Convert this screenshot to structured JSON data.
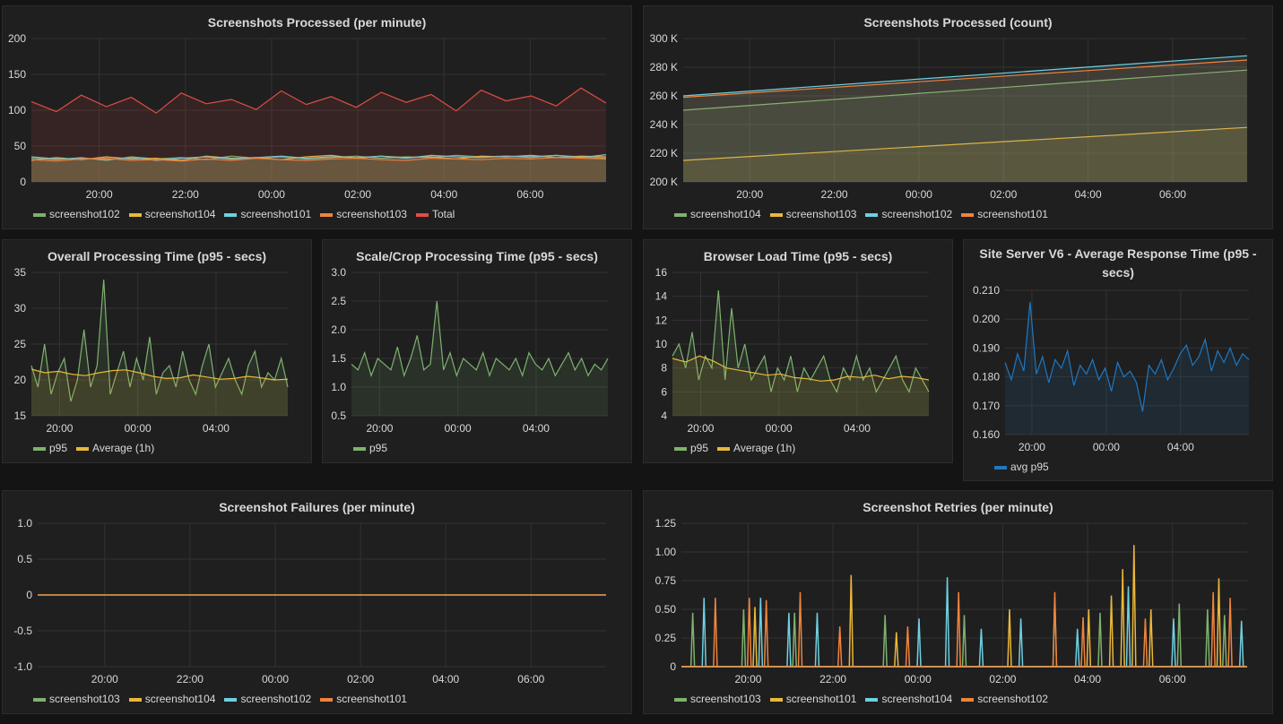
{
  "panels": [
    {
      "id": "processed-per-minute",
      "title": "Screenshots Processed (per minute)",
      "chart_data": {
        "type": "line",
        "title": "Screenshots Processed (per minute)",
        "y_ticks": [
          "200",
          "150",
          "100",
          "50",
          "0"
        ],
        "ylim": [
          0,
          200
        ],
        "x_ticks": [
          "20:00",
          "22:00",
          "00:00",
          "02:00",
          "04:00",
          "06:00"
        ],
        "grid": true,
        "legend_position": "bottom",
        "series": [
          {
            "name": "screenshot102",
            "color": "#7eb26d",
            "values": [
              33,
              31,
              34,
              30,
              35,
              32,
              34,
              31,
              36,
              33,
              35,
              32,
              34,
              36,
              33,
              35,
              34,
              37,
              35,
              36,
              34,
              37,
              35,
              33
            ]
          },
          {
            "name": "screenshot104",
            "color": "#eab839",
            "values": [
              30,
              34,
              31,
              35,
              32,
              33,
              30,
              36,
              33,
              34,
              31,
              35,
              37,
              33,
              36,
              34,
              35,
              32,
              36,
              35,
              37,
              34,
              36,
              35
            ]
          },
          {
            "name": "screenshot101",
            "color": "#6ed0e0",
            "values": [
              35,
              32,
              33,
              31,
              34,
              30,
              33,
              35,
              32,
              34,
              36,
              33,
              35,
              34,
              36,
              33,
              37,
              35,
              34,
              36,
              35,
              37,
              34,
              38
            ]
          },
          {
            "name": "screenshot103",
            "color": "#ef843c",
            "values": [
              31,
              29,
              32,
              33,
              30,
              31,
              29,
              32,
              30,
              33,
              31,
              30,
              32,
              33,
              31,
              30,
              33,
              32,
              31,
              33,
              32,
              34,
              33,
              32
            ]
          },
          {
            "name": "Total",
            "color": "#e24d42",
            "values": [
              112,
              98,
              121,
              105,
              118,
              96,
              124,
              109,
              115,
              101,
              127,
              108,
              119,
              104,
              125,
              111,
              122,
              99,
              128,
              113,
              120,
              106,
              131,
              110
            ]
          }
        ]
      },
      "legend": [
        "screenshot102",
        "screenshot104",
        "screenshot101",
        "screenshot103",
        "Total"
      ]
    },
    {
      "id": "processed-count",
      "title": "Screenshots Processed (count)",
      "chart_data": {
        "type": "area",
        "title": "Screenshots Processed (count)",
        "y_ticks": [
          "300 K",
          "280 K",
          "260 K",
          "240 K",
          "220 K",
          "200 K"
        ],
        "ylim": [
          200000,
          300000
        ],
        "x_ticks": [
          "20:00",
          "22:00",
          "00:00",
          "02:00",
          "04:00",
          "06:00"
        ],
        "grid": true,
        "legend_position": "bottom",
        "series": [
          {
            "name": "screenshot104",
            "color": "#7eb26d",
            "values": [
              250000,
              278000
            ]
          },
          {
            "name": "screenshot103",
            "color": "#eab839",
            "values": [
              215000,
              238000
            ]
          },
          {
            "name": "screenshot102",
            "color": "#6ed0e0",
            "values": [
              260000,
              288000
            ]
          },
          {
            "name": "screenshot101",
            "color": "#ef843c",
            "values": [
              259000,
              285000
            ]
          }
        ]
      },
      "legend": [
        "screenshot104",
        "screenshot103",
        "screenshot102",
        "screenshot101"
      ]
    },
    {
      "id": "overall-processing-time",
      "title": "Overall Processing Time (p95 - secs)",
      "chart_data": {
        "type": "line",
        "title": "Overall Processing Time (p95 - secs)",
        "y_ticks": [
          "35",
          "30",
          "25",
          "20",
          "15"
        ],
        "ylim": [
          15,
          35
        ],
        "x_ticks": [
          "20:00",
          "00:00",
          "04:00"
        ],
        "grid": true,
        "legend_position": "bottom",
        "series": [
          {
            "name": "p95",
            "color": "#7eb26d",
            "values": [
              22,
              19,
              25,
              18,
              21,
              23,
              17,
              20,
              27,
              19,
              22,
              34,
              18,
              21,
              24,
              19,
              23,
              20,
              26,
              18,
              21,
              22,
              19,
              24,
              20,
              18,
              22,
              25,
              19,
              21,
              23,
              20,
              18,
              22,
              24,
              19,
              21,
              20,
              23,
              19
            ]
          },
          {
            "name": "Average (1h)",
            "color": "#eab839",
            "values": [
              21.5,
              21,
              21.2,
              20.8,
              20.6,
              21,
              21.3,
              21.4,
              21,
              20.5,
              20.2,
              20.3,
              20.7,
              20.4,
              20.1,
              20.2,
              20.5,
              20.3,
              20,
              20.1
            ]
          }
        ]
      },
      "legend": [
        "p95",
        "Average (1h)"
      ]
    },
    {
      "id": "scale-crop-time",
      "title": "Scale/Crop Processing Time (p95 - secs)",
      "chart_data": {
        "type": "line",
        "title": "Scale/Crop Processing Time (p95 - secs)",
        "y_ticks": [
          "3.0",
          "2.5",
          "2.0",
          "1.5",
          "1.0",
          "0.5"
        ],
        "ylim": [
          0.5,
          3.0
        ],
        "x_ticks": [
          "20:00",
          "00:00",
          "04:00"
        ],
        "grid": true,
        "legend_position": "bottom",
        "series": [
          {
            "name": "p95",
            "color": "#7eb26d",
            "values": [
              1.4,
              1.3,
              1.6,
              1.2,
              1.5,
              1.4,
              1.3,
              1.7,
              1.2,
              1.5,
              1.9,
              1.3,
              1.4,
              2.5,
              1.3,
              1.6,
              1.2,
              1.5,
              1.4,
              1.3,
              1.6,
              1.2,
              1.5,
              1.4,
              1.3,
              1.5,
              1.2,
              1.6,
              1.4,
              1.3,
              1.5,
              1.2,
              1.4,
              1.6,
              1.3,
              1.5,
              1.2,
              1.4,
              1.3,
              1.5
            ]
          }
        ]
      },
      "legend": [
        "p95"
      ]
    },
    {
      "id": "browser-load-time",
      "title": "Browser Load Time (p95 - secs)",
      "chart_data": {
        "type": "line",
        "title": "Browser Load Time (p95 - secs)",
        "y_ticks": [
          "16",
          "14",
          "12",
          "10",
          "8",
          "6",
          "4"
        ],
        "ylim": [
          4,
          16
        ],
        "x_ticks": [
          "20:00",
          "00:00",
          "04:00"
        ],
        "grid": true,
        "legend_position": "bottom",
        "series": [
          {
            "name": "p95",
            "color": "#7eb26d",
            "values": [
              9,
              10,
              8,
              11,
              7,
              9,
              8,
              14.5,
              7,
              13,
              8,
              10,
              7,
              8,
              9,
              6,
              8,
              7,
              9,
              6,
              8,
              7,
              8,
              9,
              7,
              6,
              8,
              7,
              9,
              7,
              8,
              6,
              7,
              8,
              9,
              7,
              6,
              8,
              7,
              6
            ]
          },
          {
            "name": "Average (1h)",
            "color": "#eab839",
            "values": [
              8.8,
              8.5,
              9,
              8.6,
              8,
              7.8,
              7.6,
              7.4,
              7.5,
              7.2,
              7.1,
              6.9,
              7,
              7.3,
              7.2,
              7.4,
              7.1,
              7.3,
              7.2,
              7
            ]
          }
        ]
      },
      "legend": [
        "p95",
        "Average (1h)"
      ]
    },
    {
      "id": "site-server-response-time",
      "title": "Site Server V6 - Average Response Time (p95 - secs)",
      "chart_data": {
        "type": "line",
        "title": "Site Server V6 - Average Response Time (p95 - secs)",
        "y_ticks": [
          "0.210",
          "0.200",
          "0.190",
          "0.180",
          "0.170",
          "0.160"
        ],
        "ylim": [
          0.16,
          0.21
        ],
        "x_ticks": [
          "20:00",
          "00:00",
          "04:00"
        ],
        "grid": true,
        "legend_position": "bottom",
        "series": [
          {
            "name": "avg p95",
            "color": "#1f78c1",
            "values": [
              0.185,
              0.179,
              0.188,
              0.182,
              0.206,
              0.181,
              0.187,
              0.178,
              0.186,
              0.183,
              0.189,
              0.177,
              0.184,
              0.181,
              0.186,
              0.179,
              0.183,
              0.175,
              0.185,
              0.18,
              0.182,
              0.178,
              0.168,
              0.184,
              0.181,
              0.186,
              0.179,
              0.183,
              0.188,
              0.191,
              0.184,
              0.187,
              0.193,
              0.182,
              0.189,
              0.185,
              0.19,
              0.184,
              0.188,
              0.186
            ]
          }
        ]
      },
      "legend": [
        "avg p95"
      ]
    },
    {
      "id": "failures-per-minute",
      "title": "Screenshot Failures (per minute)",
      "chart_data": {
        "type": "line",
        "title": "Screenshot Failures (per minute)",
        "y_ticks": [
          "1.0",
          "0.5",
          "0",
          "-0.5",
          "-1.0"
        ],
        "ylim": [
          -1.0,
          1.0
        ],
        "x_ticks": [
          "20:00",
          "22:00",
          "00:00",
          "02:00",
          "04:00",
          "06:00"
        ],
        "grid": true,
        "legend_position": "bottom",
        "series": [
          {
            "name": "screenshot103",
            "color": "#7eb26d",
            "values": [
              0,
              0
            ]
          },
          {
            "name": "screenshot104",
            "color": "#eab839",
            "values": [
              0,
              0
            ]
          },
          {
            "name": "screenshot102",
            "color": "#6ed0e0",
            "values": [
              0,
              0
            ]
          },
          {
            "name": "screenshot101",
            "color": "#ef843c",
            "values": [
              0,
              0
            ]
          }
        ]
      },
      "legend": [
        "screenshot103",
        "screenshot104",
        "screenshot102",
        "screenshot101"
      ]
    },
    {
      "id": "retries-per-minute",
      "title": "Screenshot Retries (per minute)",
      "chart_data": {
        "type": "line",
        "title": "Screenshot Retries (per minute)",
        "y_ticks": [
          "1.25",
          "1.00",
          "0.75",
          "0.50",
          "0.25",
          "0"
        ],
        "ylim": [
          0,
          1.25
        ],
        "x_ticks": [
          "20:00",
          "22:00",
          "00:00",
          "02:00",
          "04:00",
          "06:00"
        ],
        "grid": true,
        "legend_position": "bottom",
        "series": [
          {
            "name": "screenshot103",
            "color": "#7eb26d",
            "spikes": [
              [
                0.02,
                0.47
              ],
              [
                0.11,
                0.5
              ],
              [
                0.2,
                0.47
              ],
              [
                0.36,
                0.45
              ],
              [
                0.5,
                0.45
              ],
              [
                0.66,
                0.6
              ],
              [
                0.74,
                0.47
              ],
              [
                0.88,
                0.55
              ],
              [
                0.93,
                0.5
              ],
              [
                0.96,
                0.45
              ]
            ]
          },
          {
            "name": "screenshot101",
            "color": "#eab839",
            "spikes": [
              [
                0.13,
                0.52
              ],
              [
                0.3,
                0.8
              ],
              [
                0.38,
                0.3
              ],
              [
                0.58,
                0.5
              ],
              [
                0.72,
                0.5
              ],
              [
                0.76,
                0.62
              ],
              [
                0.78,
                0.85
              ],
              [
                0.8,
                1.06
              ],
              [
                0.83,
                0.5
              ],
              [
                0.95,
                0.77
              ]
            ]
          },
          {
            "name": "screenshot104",
            "color": "#6ed0e0",
            "spikes": [
              [
                0.04,
                0.6
              ],
              [
                0.14,
                0.6
              ],
              [
                0.19,
                0.47
              ],
              [
                0.24,
                0.47
              ],
              [
                0.42,
                0.42
              ],
              [
                0.47,
                0.78
              ],
              [
                0.53,
                0.33
              ],
              [
                0.6,
                0.42
              ],
              [
                0.7,
                0.33
              ],
              [
                0.79,
                0.7
              ],
              [
                0.87,
                0.42
              ],
              [
                0.99,
                0.4
              ]
            ]
          },
          {
            "name": "screenshot102",
            "color": "#ef843c",
            "spikes": [
              [
                0.06,
                0.6
              ],
              [
                0.12,
                0.6
              ],
              [
                0.15,
                0.58
              ],
              [
                0.21,
                0.65
              ],
              [
                0.28,
                0.35
              ],
              [
                0.4,
                0.35
              ],
              [
                0.49,
                0.65
              ],
              [
                0.66,
                0.65
              ],
              [
                0.71,
                0.43
              ],
              [
                0.82,
                0.42
              ],
              [
                0.94,
                0.65
              ],
              [
                0.97,
                0.6
              ]
            ]
          }
        ]
      },
      "legend": [
        "screenshot103",
        "screenshot101",
        "screenshot104",
        "screenshot102"
      ]
    }
  ]
}
